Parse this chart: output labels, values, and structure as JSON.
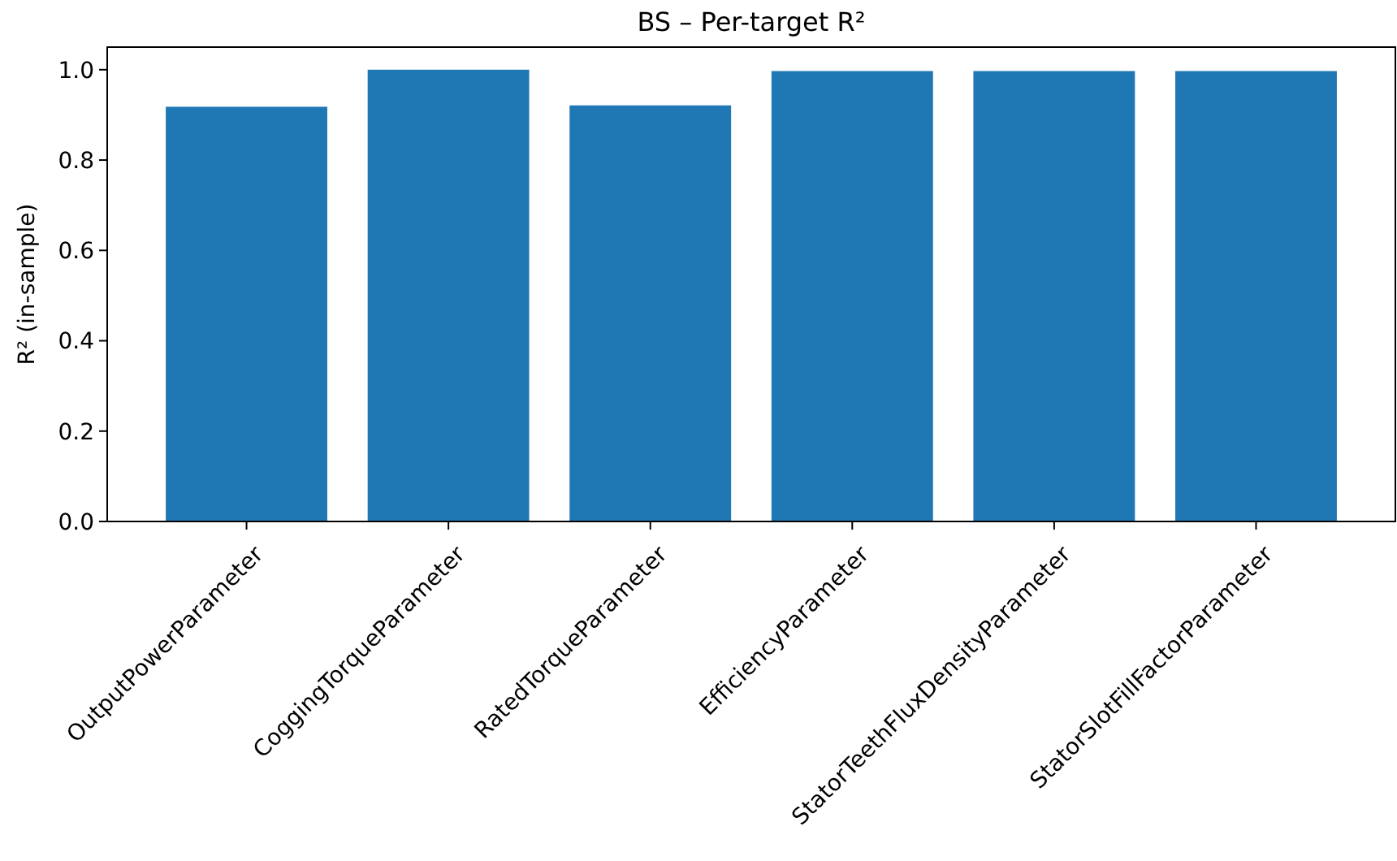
{
  "chart_data": {
    "type": "bar",
    "title": "BS – Per-target R²",
    "ylabel": "R² (in-sample)",
    "categories": [
      "OutputPowerParameter",
      "CoggingTorqueParameter",
      "RatedTorqueParameter",
      "EfficiencyParameter",
      "StatorTeethFluxDensityParameter",
      "StatorSlotFillFactorParameter"
    ],
    "values": [
      0.918,
      1.0,
      0.921,
      0.997,
      0.997,
      0.997
    ],
    "color": "#1f77b4",
    "ylim": [
      0,
      1.05
    ],
    "yticks": [
      {
        "value": 0,
        "label": "0.0"
      },
      {
        "value": 0.2,
        "label": "0.2"
      },
      {
        "value": 0.4,
        "label": "0.4"
      },
      {
        "value": 0.6,
        "label": "0.6"
      },
      {
        "value": 0.8,
        "label": "0.8"
      },
      {
        "value": 1,
        "label": "1.0"
      }
    ],
    "grid": false
  }
}
